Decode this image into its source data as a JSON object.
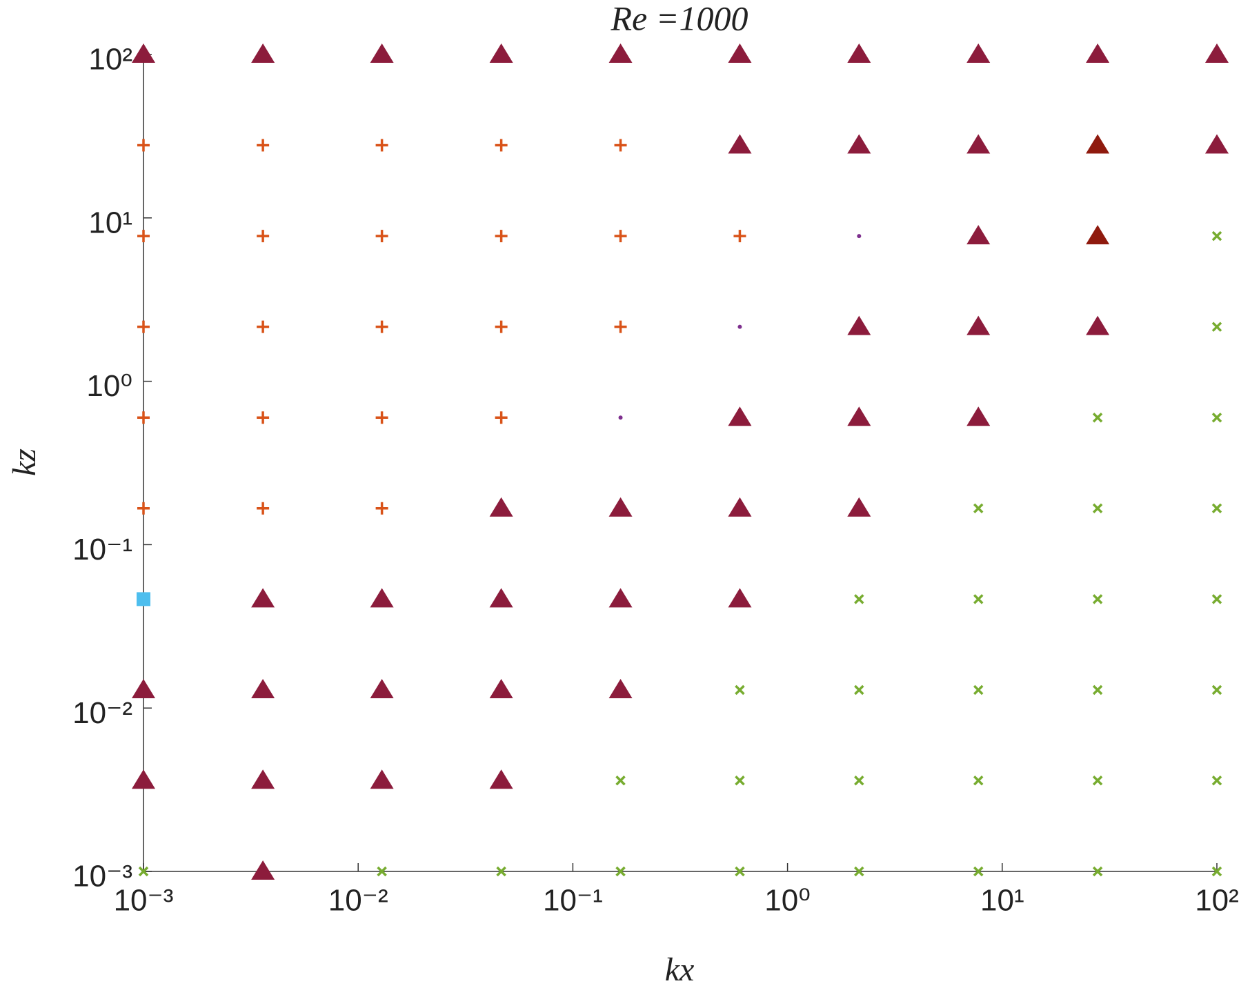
{
  "chart_data": {
    "type": "scatter",
    "title": "Re =1000",
    "x_label": "kx",
    "y_label": "kz",
    "log_x": true,
    "log_y": true,
    "xlim": [
      0.001,
      100
    ],
    "ylim": [
      0.001,
      100
    ],
    "xticks": [
      {
        "value": 0.001,
        "label": "10⁻³"
      },
      {
        "value": 0.01,
        "label": "10⁻²"
      },
      {
        "value": 0.1,
        "label": "10⁻¹"
      },
      {
        "value": 1,
        "label": "10⁰"
      },
      {
        "value": 10,
        "label": "10¹"
      },
      {
        "value": 100,
        "label": "10²"
      }
    ],
    "yticks": [
      {
        "value": 0.001,
        "label": "10⁻³"
      },
      {
        "value": 0.01,
        "label": "10⁻²"
      },
      {
        "value": 0.1,
        "label": "10⁻¹"
      },
      {
        "value": 1,
        "label": "10⁰"
      },
      {
        "value": 10,
        "label": "10¹"
      },
      {
        "value": 100,
        "label": "10²"
      }
    ],
    "series": [
      {
        "marker": "triangle",
        "color": "#8c1c3c",
        "x": [
          0.001,
          0.0036,
          0.0129,
          0.0464,
          0.1668,
          0.5995,
          2.154,
          7.743,
          27.83,
          100,
          0.5995,
          2.154,
          7.743,
          100,
          7.743,
          2.154,
          7.743,
          27.83,
          0.5995,
          2.154,
          7.743,
          0.0464,
          0.1668,
          0.5995,
          2.154,
          0.0036,
          0.0129,
          0.0464,
          0.1668,
          0.5995,
          0.001,
          0.0036,
          0.0129,
          0.0464,
          0.1668,
          0.001,
          0.0036,
          0.0129,
          0.0464,
          0.0036
        ],
        "values": [
          100,
          100,
          100,
          100,
          100,
          100,
          100,
          100,
          100,
          100,
          27.83,
          27.83,
          27.83,
          27.83,
          7.743,
          2.154,
          2.154,
          2.154,
          0.5995,
          0.5995,
          0.5995,
          0.1668,
          0.1668,
          0.1668,
          0.1668,
          0.0464,
          0.0464,
          0.0464,
          0.0464,
          0.0464,
          0.0129,
          0.0129,
          0.0129,
          0.0129,
          0.0129,
          0.0036,
          0.0036,
          0.0036,
          0.0036,
          0.001
        ]
      },
      {
        "marker": "triangle",
        "color": "#8f1a0e",
        "x": [
          27.83,
          27.83
        ],
        "values": [
          27.83,
          7.743
        ]
      },
      {
        "marker": "plus",
        "color": "#d95319",
        "x": [
          0.001,
          0.0036,
          0.0129,
          0.0464,
          0.1668,
          0.001,
          0.0036,
          0.0129,
          0.0464,
          0.1668,
          0.5995,
          0.001,
          0.0036,
          0.0129,
          0.0464,
          0.1668,
          0.001,
          0.0036,
          0.0129,
          0.0464,
          0.001,
          0.0036,
          0.0129
        ],
        "values": [
          27.83,
          27.83,
          27.83,
          27.83,
          27.83,
          7.743,
          7.743,
          7.743,
          7.743,
          7.743,
          7.743,
          2.154,
          2.154,
          2.154,
          2.154,
          2.154,
          0.5995,
          0.5995,
          0.5995,
          0.5995,
          0.1668,
          0.1668,
          0.1668
        ]
      },
      {
        "marker": "cross",
        "color": "#77ac30",
        "x": [
          100,
          100,
          27.83,
          100,
          7.743,
          27.83,
          100,
          2.154,
          7.743,
          27.83,
          100,
          0.5995,
          2.154,
          7.743,
          27.83,
          100,
          0.1668,
          0.5995,
          2.154,
          7.743,
          27.83,
          100,
          0.001,
          0.0129,
          0.0464,
          0.1668,
          0.5995,
          2.154,
          7.743,
          27.83,
          100
        ],
        "values": [
          7.743,
          2.154,
          0.5995,
          0.5995,
          0.1668,
          0.1668,
          0.1668,
          0.0464,
          0.0464,
          0.0464,
          0.0464,
          0.0129,
          0.0129,
          0.0129,
          0.0129,
          0.0129,
          0.0036,
          0.0036,
          0.0036,
          0.0036,
          0.0036,
          0.0036,
          0.001,
          0.001,
          0.001,
          0.001,
          0.001,
          0.001,
          0.001,
          0.001,
          0.001
        ]
      },
      {
        "marker": "dot",
        "color": "#7e2f8e",
        "x": [
          2.154,
          0.5995,
          0.1668
        ],
        "values": [
          7.743,
          2.154,
          0.5995
        ]
      },
      {
        "marker": "square",
        "color": "#4dbeee",
        "x": [
          0.001
        ],
        "values": [
          0.0464
        ]
      }
    ]
  }
}
